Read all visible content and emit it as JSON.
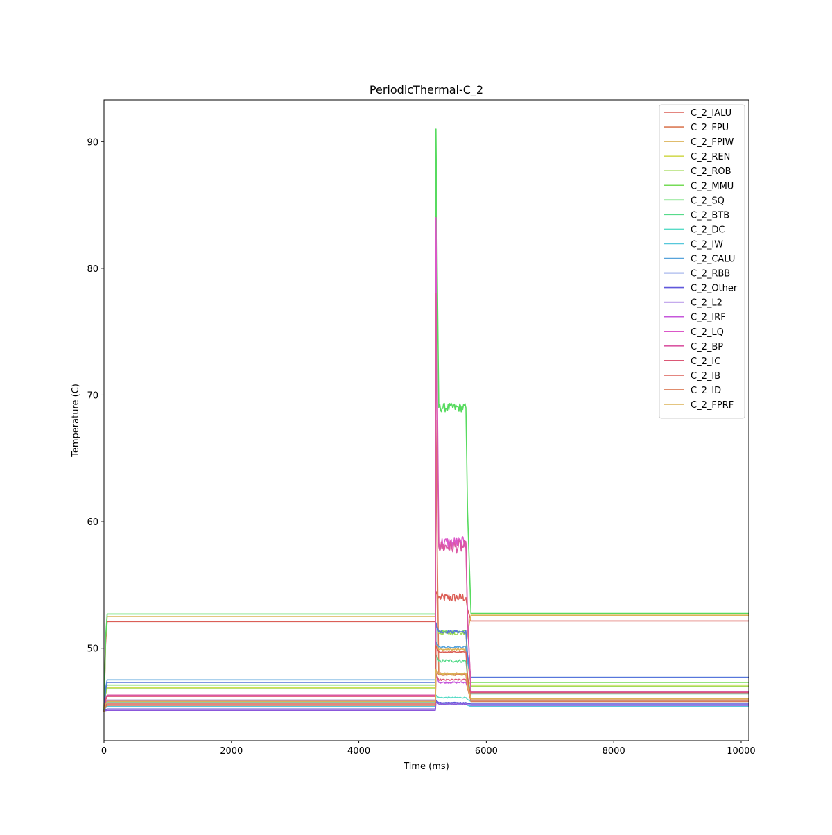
{
  "chart_data": {
    "type": "line",
    "title": "PeriodicThermal-C_2",
    "xlabel": "Time (ms)",
    "ylabel": "Temperature (C)",
    "xlim": [
      0,
      10120
    ],
    "ylim": [
      42.7,
      93.3
    ],
    "xticks": [
      0,
      2000,
      4000,
      6000,
      8000,
      10000
    ],
    "yticks": [
      50,
      60,
      70,
      80,
      90
    ],
    "grid": false,
    "legend_position": "top-right",
    "phase_times": {
      "rise_end": 50,
      "burst_start": 5200,
      "burst_end": 5680,
      "settle_end": 5760,
      "end": 10120
    },
    "series": [
      {
        "name": "C_2_IALU",
        "color": "#db5f57",
        "start": 45.0,
        "base": 52.1,
        "burst": 54.0,
        "peak": 54.5,
        "post": 52.15,
        "noise": 0.35
      },
      {
        "name": "C_2_FPU",
        "color": "#db7c57",
        "start": 45.0,
        "base": 45.8,
        "burst": 48.0,
        "peak": 68.0,
        "post": 46.5,
        "noise": 0.06
      },
      {
        "name": "C_2_FPIW",
        "color": "#dbb257",
        "start": 45.0,
        "base": 52.5,
        "burst": 49.9,
        "peak": 50.5,
        "post": 52.6,
        "noise": 0.08
      },
      {
        "name": "C_2_REN",
        "color": "#d3db57",
        "start": 45.0,
        "base": 46.9,
        "burst": 47.9,
        "peak": 48.3,
        "post": 47.1,
        "noise": 0.06
      },
      {
        "name": "C_2_ROB",
        "color": "#a2db57",
        "start": 45.0,
        "base": 46.8,
        "burst": 51.2,
        "peak": 52.0,
        "post": 47.0,
        "noise": 0.15
      },
      {
        "name": "C_2_MMU",
        "color": "#76db57",
        "start": 45.0,
        "base": 47.1,
        "burst": 51.3,
        "peak": 52.0,
        "post": 47.3,
        "noise": 0.12
      },
      {
        "name": "C_2_SQ",
        "color": "#57db5f",
        "start": 45.0,
        "base": 52.7,
        "burst": 69.0,
        "peak": 91.0,
        "post": 52.75,
        "noise": 0.35
      },
      {
        "name": "C_2_BTB",
        "color": "#57db8b",
        "start": 45.0,
        "base": 45.9,
        "burst": 49.0,
        "peak": 49.5,
        "post": 46.4,
        "noise": 0.12
      },
      {
        "name": "C_2_DC",
        "color": "#57dbc6",
        "start": 45.0,
        "base": 45.7,
        "burst": 46.1,
        "peak": 46.3,
        "post": 45.8,
        "noise": 0.04
      },
      {
        "name": "C_2_IW",
        "color": "#57c8db",
        "start": 45.0,
        "base": 45.4,
        "burst": 45.6,
        "peak": 45.8,
        "post": 45.4,
        "noise": 0.03
      },
      {
        "name": "C_2_CALU",
        "color": "#57a3db",
        "start": 45.0,
        "base": 47.5,
        "burst": 50.1,
        "peak": 50.5,
        "post": 47.7,
        "noise": 0.08
      },
      {
        "name": "C_2_RBB",
        "color": "#5775db",
        "start": 45.0,
        "base": 47.3,
        "burst": 51.3,
        "peak": 52.0,
        "post": 47.7,
        "noise": 0.12
      },
      {
        "name": "C_2_Other",
        "color": "#5f57db",
        "start": 45.0,
        "base": 45.2,
        "burst": 45.7,
        "peak": 45.9,
        "post": 45.6,
        "noise": 0.03
      },
      {
        "name": "C_2_L2",
        "color": "#8b57db",
        "start": 45.0,
        "base": 45.1,
        "burst": 45.6,
        "peak": 45.8,
        "post": 45.5,
        "noise": 0.03
      },
      {
        "name": "C_2_IRF",
        "color": "#c657db",
        "start": 45.0,
        "base": 45.9,
        "burst": 47.3,
        "peak": 48.0,
        "post": 46.5,
        "noise": 0.06
      },
      {
        "name": "C_2_LQ",
        "color": "#db57c8",
        "start": 45.0,
        "base": 46.3,
        "burst": 58.3,
        "peak": 84.0,
        "post": 46.6,
        "noise": 0.5
      },
      {
        "name": "C_2_BP",
        "color": "#db57a3",
        "start": 45.0,
        "base": 46.3,
        "burst": 58.0,
        "peak": 78.0,
        "post": 46.6,
        "noise": 0.5
      },
      {
        "name": "C_2_IC",
        "color": "#db5775",
        "start": 45.0,
        "base": 46.2,
        "burst": 47.5,
        "peak": 48.0,
        "post": 46.5,
        "noise": 0.06
      },
      {
        "name": "C_2_IB",
        "color": "#db5f57",
        "start": 45.0,
        "base": 45.6,
        "burst": 49.7,
        "peak": 50.2,
        "post": 45.9,
        "noise": 0.05
      },
      {
        "name": "C_2_ID",
        "color": "#db7c57",
        "start": 45.0,
        "base": 45.5,
        "burst": 47.9,
        "peak": 48.3,
        "post": 45.8,
        "noise": 0.06
      },
      {
        "name": "C_2_FPRF",
        "color": "#dbb257",
        "start": 45.0,
        "base": 45.8,
        "burst": 48.0,
        "peak": 48.3,
        "post": 46.0,
        "noise": 0.06
      }
    ]
  }
}
